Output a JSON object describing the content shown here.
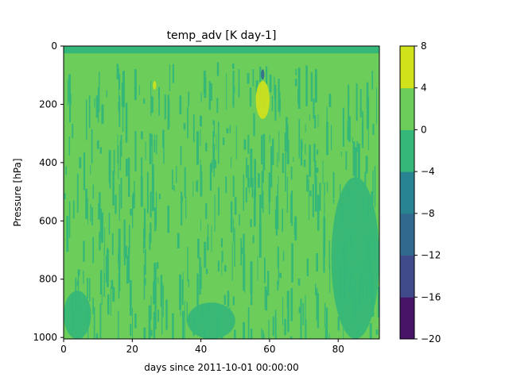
{
  "chart_data": {
    "type": "heatmap",
    "title": "temp_adv [K day-1]",
    "xlabel": "days since 2011-10-01 00:00:00",
    "ylabel": "Pressure [hPa]",
    "xlim": [
      0,
      92
    ],
    "ylim": [
      1005,
      0
    ],
    "xticks": [
      0,
      20,
      40,
      60,
      80
    ],
    "yticks": [
      0,
      200,
      400,
      600,
      800,
      1000
    ],
    "colorbar": {
      "levels": [
        -20,
        -16,
        -12,
        -8,
        -4,
        0,
        4,
        8
      ],
      "colors": [
        "#481467",
        "#3e4a89",
        "#31688e",
        "#26838f",
        "#35b779",
        "#6ccd5a",
        "#d1e21b"
      ],
      "tick_labels": [
        "−20",
        "−16",
        "−12",
        "−8",
        "−4",
        "0",
        "4",
        "8"
      ]
    },
    "background_level_range": [
      0,
      4
    ],
    "regions": [
      {
        "level_range": [
          -4,
          0
        ],
        "x": [
          0,
          92
        ],
        "y": [
          0,
          25
        ],
        "note": "top band"
      },
      {
        "level_range": [
          -4,
          0
        ],
        "x": [
          0,
          8
        ],
        "y": [
          840,
          1005
        ]
      },
      {
        "level_range": [
          -4,
          0
        ],
        "x": [
          36,
          50
        ],
        "y": [
          880,
          1005
        ]
      },
      {
        "level_range": [
          -4,
          0
        ],
        "x": [
          78,
          92
        ],
        "y": [
          450,
          1005
        ]
      },
      {
        "level_range": [
          -12,
          -8
        ],
        "x": [
          57.5,
          58.5
        ],
        "y": [
          80,
          115
        ]
      },
      {
        "level_range": [
          4,
          8
        ],
        "x": [
          56,
          60
        ],
        "y": [
          120,
          250
        ]
      },
      {
        "level_range": [
          4,
          8
        ],
        "x": [
          26,
          27
        ],
        "y": [
          120,
          150
        ]
      }
    ]
  }
}
